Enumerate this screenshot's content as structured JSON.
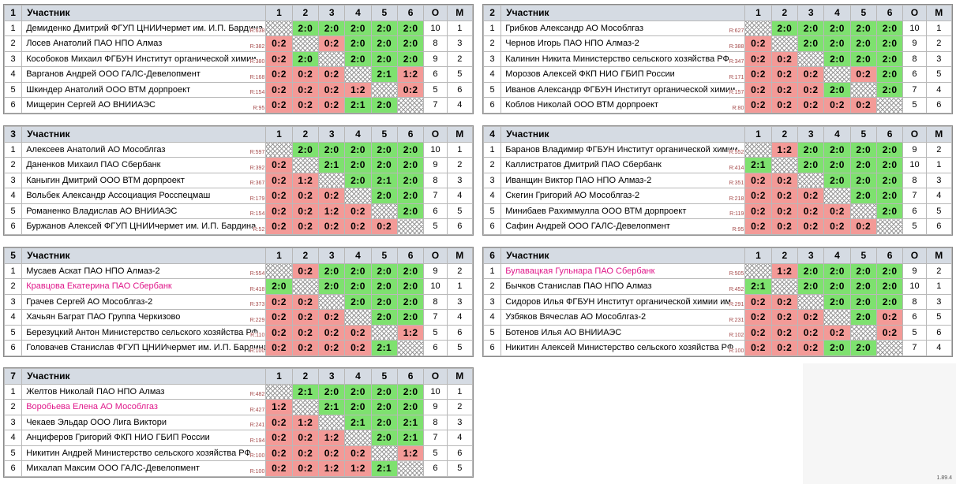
{
  "version": "1.89.4",
  "groups": [
    {
      "number": "1",
      "header": {
        "participant": "Участник",
        "cols": [
          "1",
          "2",
          "3",
          "4",
          "5",
          "6"
        ],
        "points": "О",
        "place": "М"
      },
      "players": [
        {
          "n": "1",
          "name": "Демиденко Дмитрий ФГУП ЦНИИчермет им. И.П. Бардина",
          "rating": "R:638",
          "pink": false,
          "scores": [
            "x",
            "2:0",
            "2:0",
            "2:0",
            "2:0",
            "2:0"
          ],
          "o": "10",
          "m": "1"
        },
        {
          "n": "2",
          "name": "Лосев Анатолий ПАО НПО Алмаз",
          "rating": "R:382",
          "pink": false,
          "scores": [
            "0:2",
            "x",
            "0:2",
            "2:0",
            "2:0",
            "2:0"
          ],
          "o": "8",
          "m": "3"
        },
        {
          "n": "3",
          "name": "Кособоков Михаил ФГБУН Институт органической химии",
          "rating": "R:380",
          "pink": false,
          "scores": [
            "0:2",
            "2:0",
            "x",
            "2:0",
            "2:0",
            "2:0"
          ],
          "o": "9",
          "m": "2"
        },
        {
          "n": "4",
          "name": "Варганов Андрей ООО ГАЛС-Девелопмент",
          "rating": "R:168",
          "pink": false,
          "scores": [
            "0:2",
            "0:2",
            "0:2",
            "x",
            "2:1",
            "1:2"
          ],
          "o": "6",
          "m": "5"
        },
        {
          "n": "5",
          "name": "Шкиндер Анатолий ООО ВТМ дорпроект",
          "rating": "R:154",
          "pink": false,
          "scores": [
            "0:2",
            "0:2",
            "0:2",
            "1:2",
            "x",
            "0:2"
          ],
          "o": "5",
          "m": "6"
        },
        {
          "n": "6",
          "name": "Мищерин Сергей АО ВНИИАЭС",
          "rating": "R:95",
          "pink": false,
          "scores": [
            "0:2",
            "0:2",
            "0:2",
            "2:1",
            "2:0",
            "x"
          ],
          "o": "7",
          "m": "4"
        }
      ]
    },
    {
      "number": "2",
      "header": {
        "participant": "Участник",
        "cols": [
          "1",
          "2",
          "3",
          "4",
          "5",
          "6"
        ],
        "points": "О",
        "place": "М"
      },
      "players": [
        {
          "n": "1",
          "name": "Грибков Александр АО Мособлгаз",
          "rating": "R:627",
          "pink": false,
          "scores": [
            "x",
            "2:0",
            "2:0",
            "2:0",
            "2:0",
            "2:0"
          ],
          "o": "10",
          "m": "1"
        },
        {
          "n": "2",
          "name": "Чернов Игорь ПАО НПО Алмаз-2",
          "rating": "R:388",
          "pink": false,
          "scores": [
            "0:2",
            "x",
            "2:0",
            "2:0",
            "2:0",
            "2:0"
          ],
          "o": "9",
          "m": "2"
        },
        {
          "n": "3",
          "name": "Калинин Никита Министерство сельского хозяйства РФ",
          "rating": "R:347",
          "pink": false,
          "scores": [
            "0:2",
            "0:2",
            "x",
            "2:0",
            "2:0",
            "2:0"
          ],
          "o": "8",
          "m": "3"
        },
        {
          "n": "4",
          "name": "Морозов Алексей ФКП НИО ГБИП России",
          "rating": "R:171",
          "pink": false,
          "scores": [
            "0:2",
            "0:2",
            "0:2",
            "x",
            "0:2",
            "2:0"
          ],
          "o": "6",
          "m": "5"
        },
        {
          "n": "5",
          "name": "Иванов Александр ФГБУН Институт органической химии",
          "rating": "R:157",
          "pink": false,
          "scores": [
            "0:2",
            "0:2",
            "0:2",
            "2:0",
            "x",
            "2:0"
          ],
          "o": "7",
          "m": "4"
        },
        {
          "n": "6",
          "name": "Коблов Николай ООО ВТМ дорпроект",
          "rating": "R:80",
          "pink": false,
          "scores": [
            "0:2",
            "0:2",
            "0:2",
            "0:2",
            "0:2",
            "x"
          ],
          "o": "5",
          "m": "6"
        }
      ]
    },
    {
      "number": "3",
      "header": {
        "participant": "Участник",
        "cols": [
          "1",
          "2",
          "3",
          "4",
          "5",
          "6"
        ],
        "points": "О",
        "place": "М"
      },
      "players": [
        {
          "n": "1",
          "name": "Алексеев Анатолий АО Мособлгаз",
          "rating": "R:597",
          "pink": false,
          "scores": [
            "x",
            "2:0",
            "2:0",
            "2:0",
            "2:0",
            "2:0"
          ],
          "o": "10",
          "m": "1"
        },
        {
          "n": "2",
          "name": "Даненков Михаил ПАО Сбербанк",
          "rating": "R:392",
          "pink": false,
          "scores": [
            "0:2",
            "x",
            "2:1",
            "2:0",
            "2:0",
            "2:0"
          ],
          "o": "9",
          "m": "2"
        },
        {
          "n": "3",
          "name": "Каныгин Дмитрий ООО ВТМ дорпроект",
          "rating": "R:367",
          "pink": false,
          "scores": [
            "0:2",
            "1:2",
            "x",
            "2:0",
            "2:1",
            "2:0"
          ],
          "o": "8",
          "m": "3"
        },
        {
          "n": "4",
          "name": "Вольбек Александр Ассоциация Росспецмаш",
          "rating": "R:179",
          "pink": false,
          "scores": [
            "0:2",
            "0:2",
            "0:2",
            "x",
            "2:0",
            "2:0"
          ],
          "o": "7",
          "m": "4"
        },
        {
          "n": "5",
          "name": "Романенко Владислав АО ВНИИАЭС",
          "rating": "R:154",
          "pink": false,
          "scores": [
            "0:2",
            "0:2",
            "1:2",
            "0:2",
            "x",
            "2:0"
          ],
          "o": "6",
          "m": "5"
        },
        {
          "n": "6",
          "name": "Буржанов Алексей ФГУП ЦНИИчермет им. И.П. Бардина",
          "rating": "R:52",
          "pink": false,
          "scores": [
            "0:2",
            "0:2",
            "0:2",
            "0:2",
            "0:2",
            "x"
          ],
          "o": "5",
          "m": "6"
        }
      ]
    },
    {
      "number": "4",
      "header": {
        "participant": "Участник",
        "cols": [
          "1",
          "2",
          "3",
          "4",
          "5",
          "6"
        ],
        "points": "О",
        "place": "М"
      },
      "players": [
        {
          "n": "1",
          "name": "Баранов Владимир ФГБУН Институт органической химии",
          "rating": "R:552",
          "pink": false,
          "scores": [
            "x",
            "1:2",
            "2:0",
            "2:0",
            "2:0",
            "2:0"
          ],
          "o": "9",
          "m": "2"
        },
        {
          "n": "2",
          "name": "Каллистратов Дмитрий ПАО Сбербанк",
          "rating": "R:414",
          "pink": false,
          "scores": [
            "2:1",
            "x",
            "2:0",
            "2:0",
            "2:0",
            "2:0"
          ],
          "o": "10",
          "m": "1"
        },
        {
          "n": "3",
          "name": "Иванщин Виктор ПАО НПО Алмаз-2",
          "rating": "R:351",
          "pink": false,
          "scores": [
            "0:2",
            "0:2",
            "x",
            "2:0",
            "2:0",
            "2:0"
          ],
          "o": "8",
          "m": "3"
        },
        {
          "n": "4",
          "name": "Скегин Григорий АО Мособлгаз-2",
          "rating": "R:218",
          "pink": false,
          "scores": [
            "0:2",
            "0:2",
            "0:2",
            "x",
            "2:0",
            "2:0"
          ],
          "o": "7",
          "m": "4"
        },
        {
          "n": "5",
          "name": "Минибаев Рахиммулла ООО ВТМ дорпроект",
          "rating": "R:119",
          "pink": false,
          "scores": [
            "0:2",
            "0:2",
            "0:2",
            "0:2",
            "x",
            "2:0"
          ],
          "o": "6",
          "m": "5"
        },
        {
          "n": "6",
          "name": "Сафин Андрей ООО ГАЛС-Девелопмент",
          "rating": "R:95",
          "pink": false,
          "scores": [
            "0:2",
            "0:2",
            "0:2",
            "0:2",
            "0:2",
            "x"
          ],
          "o": "5",
          "m": "6"
        }
      ]
    },
    {
      "number": "5",
      "header": {
        "participant": "Участник",
        "cols": [
          "1",
          "2",
          "3",
          "4",
          "5",
          "6"
        ],
        "points": "О",
        "place": "М"
      },
      "players": [
        {
          "n": "1",
          "name": "Мусаев Аскат ПАО НПО Алмаз-2",
          "rating": "R:554",
          "pink": false,
          "scores": [
            "x",
            "0:2",
            "2:0",
            "2:0",
            "2:0",
            "2:0"
          ],
          "o": "9",
          "m": "2"
        },
        {
          "n": "2",
          "name": "Кравцова Екатерина ПАО Сбербанк",
          "rating": "R:418",
          "pink": true,
          "scores": [
            "2:0",
            "x",
            "2:0",
            "2:0",
            "2:0",
            "2:0"
          ],
          "o": "10",
          "m": "1"
        },
        {
          "n": "3",
          "name": "Грачев Сергей АО Мособлгаз-2",
          "rating": "R:373",
          "pink": false,
          "scores": [
            "0:2",
            "0:2",
            "x",
            "2:0",
            "2:0",
            "2:0"
          ],
          "o": "8",
          "m": "3"
        },
        {
          "n": "4",
          "name": "Хачьян Баграт ПАО Группа Черкизово",
          "rating": "R:229",
          "pink": false,
          "scores": [
            "0:2",
            "0:2",
            "0:2",
            "x",
            "2:0",
            "2:0"
          ],
          "o": "7",
          "m": "4"
        },
        {
          "n": "5",
          "name": "Березуцкий Антон Министерство сельского хозяйства РФ",
          "rating": "R:110",
          "pink": false,
          "scores": [
            "0:2",
            "0:2",
            "0:2",
            "0:2",
            "x",
            "1:2"
          ],
          "o": "5",
          "m": "6"
        },
        {
          "n": "6",
          "name": "Головачев Станислав ФГУП ЦНИИчермет им. И.П. Бардина",
          "rating": "R:100",
          "pink": false,
          "scores": [
            "0:2",
            "0:2",
            "0:2",
            "0:2",
            "2:1",
            "x"
          ],
          "o": "6",
          "m": "5"
        }
      ]
    },
    {
      "number": "6",
      "header": {
        "participant": "Участник",
        "cols": [
          "1",
          "2",
          "3",
          "4",
          "5",
          "6"
        ],
        "points": "О",
        "place": "М"
      },
      "players": [
        {
          "n": "1",
          "name": "Булавацкая Гульнара ПАО Сбербанк",
          "rating": "R:505",
          "pink": true,
          "scores": [
            "x",
            "1:2",
            "2:0",
            "2:0",
            "2:0",
            "2:0"
          ],
          "o": "9",
          "m": "2"
        },
        {
          "n": "2",
          "name": "Бычков Станислав ПАО НПО Алмаз",
          "rating": "R:452",
          "pink": false,
          "scores": [
            "2:1",
            "x",
            "2:0",
            "2:0",
            "2:0",
            "2:0"
          ],
          "o": "10",
          "m": "1"
        },
        {
          "n": "3",
          "name": "Сидоров Илья ФГБУН Институт органической химии им.",
          "rating": "R:291",
          "pink": false,
          "scores": [
            "0:2",
            "0:2",
            "x",
            "2:0",
            "2:0",
            "2:0"
          ],
          "o": "8",
          "m": "3"
        },
        {
          "n": "4",
          "name": "Узбяков Вячеслав АО Мособлгаз-2",
          "rating": "R:231",
          "pink": false,
          "scores": [
            "0:2",
            "0:2",
            "0:2",
            "x",
            "2:0",
            "0:2"
          ],
          "o": "6",
          "m": "5"
        },
        {
          "n": "5",
          "name": "Ботенов Илья АО ВНИИАЭС",
          "rating": "R:102",
          "pink": false,
          "scores": [
            "0:2",
            "0:2",
            "0:2",
            "0:2",
            "x",
            "0:2"
          ],
          "o": "5",
          "m": "6"
        },
        {
          "n": "6",
          "name": "Никитин Алексей Министерство сельского хозяйства РФ",
          "rating": "R:100",
          "pink": false,
          "scores": [
            "0:2",
            "0:2",
            "0:2",
            "2:0",
            "2:0",
            "x"
          ],
          "o": "7",
          "m": "4"
        }
      ]
    },
    {
      "number": "7",
      "header": {
        "participant": "Участник",
        "cols": [
          "1",
          "2",
          "3",
          "4",
          "5",
          "6"
        ],
        "points": "О",
        "place": "М"
      },
      "players": [
        {
          "n": "1",
          "name": "Желтов Николай ПАО НПО Алмаз",
          "rating": "R:482",
          "pink": false,
          "scores": [
            "x",
            "2:1",
            "2:0",
            "2:0",
            "2:0",
            "2:0"
          ],
          "o": "10",
          "m": "1"
        },
        {
          "n": "2",
          "name": "Воробьева Елена АО Мособлгаз",
          "rating": "R:427",
          "pink": true,
          "scores": [
            "1:2",
            "x",
            "2:1",
            "2:0",
            "2:0",
            "2:0"
          ],
          "o": "9",
          "m": "2"
        },
        {
          "n": "3",
          "name": "Чекаев Эльдар ООО Лига Виктори",
          "rating": "R:241",
          "pink": false,
          "scores": [
            "0:2",
            "1:2",
            "x",
            "2:1",
            "2:0",
            "2:1"
          ],
          "o": "8",
          "m": "3"
        },
        {
          "n": "4",
          "name": "Анциферов Григорий ФКП НИО ГБИП России",
          "rating": "R:194",
          "pink": false,
          "scores": [
            "0:2",
            "0:2",
            "1:2",
            "x",
            "2:0",
            "2:1"
          ],
          "o": "7",
          "m": "4"
        },
        {
          "n": "5",
          "name": "Никитин Андрей Министерство сельского хозяйства РФ",
          "rating": "R:100",
          "pink": false,
          "scores": [
            "0:2",
            "0:2",
            "0:2",
            "0:2",
            "x",
            "1:2"
          ],
          "o": "5",
          "m": "6"
        },
        {
          "n": "6",
          "name": "Михалап Максим ООО ГАЛС-Девелопмент",
          "rating": "R:100",
          "pink": false,
          "scores": [
            "0:2",
            "0:2",
            "1:2",
            "1:2",
            "2:1",
            "x"
          ],
          "o": "6",
          "m": "5"
        }
      ]
    }
  ]
}
